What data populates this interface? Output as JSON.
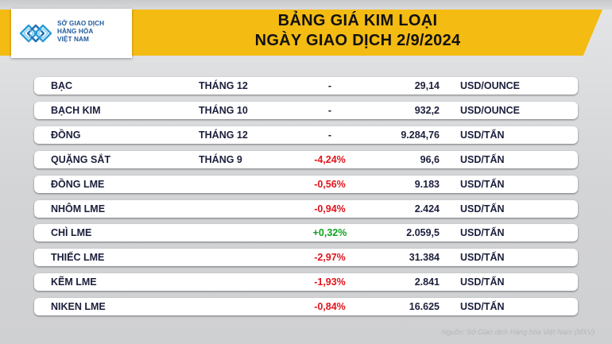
{
  "header": {
    "logo_lines": [
      "SỞ GIAO DỊCH",
      "HÀNG HÓA",
      "VIỆT NAM"
    ],
    "title_line1": "BẢNG GIÁ KIM LOẠI",
    "title_line2": "NGÀY GIAO DỊCH 2/9/2024"
  },
  "rows": [
    {
      "name": "BẠC",
      "term": "THÁNG 12",
      "change": "-",
      "price": "29,14",
      "unit": "USD/OUNCE",
      "change_type": "none"
    },
    {
      "name": "BẠCH KIM",
      "term": "THÁNG 10",
      "change": "-",
      "price": "932,2",
      "unit": "USD/OUNCE",
      "change_type": "none"
    },
    {
      "name": "ĐỒNG",
      "term": "THÁNG 12",
      "change": "-",
      "price": "9.284,76",
      "unit": "USD/TẤN",
      "change_type": "none"
    },
    {
      "name": "QUẶNG SẮT",
      "term": "THÁNG 9",
      "change": "-4,24%",
      "price": "96,6",
      "unit": "USD/TẤN",
      "change_type": "neg"
    },
    {
      "name": "ĐỒNG LME",
      "term": "",
      "change": "-0,56%",
      "price": "9.183",
      "unit": "USD/TẤN",
      "change_type": "neg"
    },
    {
      "name": "NHÔM LME",
      "term": "",
      "change": "-0,94%",
      "price": "2.424",
      "unit": "USD/TẤN",
      "change_type": "neg"
    },
    {
      "name": "CHÌ LME",
      "term": "",
      "change": "+0,32%",
      "price": "2.059,5",
      "unit": "USD/TẤN",
      "change_type": "pos"
    },
    {
      "name": "THIẾC LME",
      "term": "",
      "change": "-2,97%",
      "price": "31.384",
      "unit": "USD/TẤN",
      "change_type": "neg"
    },
    {
      "name": "KẼM LME",
      "term": "",
      "change": "-1,93%",
      "price": "2.841",
      "unit": "USD/TẤN",
      "change_type": "neg"
    },
    {
      "name": "NIKEN LME",
      "term": "",
      "change": "-0,84%",
      "price": "16.625",
      "unit": "USD/TẤN",
      "change_type": "neg"
    }
  ],
  "source": "Nguồn: Sở Giao dịch Hàng hóa Việt Nam (MXV)",
  "colors": {
    "banner": "#f4bb12",
    "negative": "#e0141c",
    "positive": "#11a021",
    "logo_blue": "#1f5a9c"
  }
}
